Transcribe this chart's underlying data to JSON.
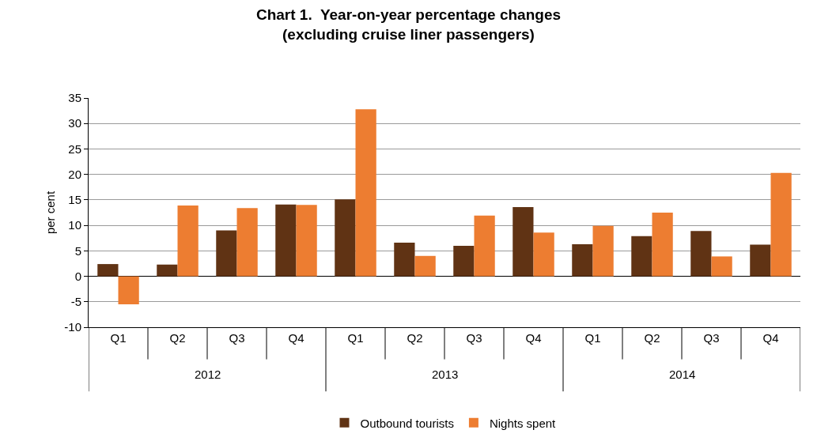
{
  "chart_data": {
    "type": "bar",
    "title": "Chart 1.  Year-on-year percentage changes",
    "subtitle": "(excluding cruise liner passengers)",
    "ylabel": "per cent",
    "categories": [
      "Q1",
      "Q2",
      "Q3",
      "Q4",
      "Q1",
      "Q2",
      "Q3",
      "Q4",
      "Q1",
      "Q2",
      "Q3",
      "Q4"
    ],
    "annotations": [
      "2012",
      "2013",
      "2014"
    ],
    "series": [
      {
        "name": "Outbound tourists",
        "color": "#603314",
        "values": [
          2.4,
          2.3,
          9.0,
          14.1,
          15.1,
          6.6,
          6.0,
          13.6,
          6.3,
          7.9,
          8.9,
          6.2
        ]
      },
      {
        "name": "Nights spent",
        "color": "#ed7d31",
        "values": [
          -5.5,
          13.9,
          13.4,
          14.0,
          32.8,
          4.0,
          11.9,
          8.6,
          9.9,
          12.5,
          3.9,
          20.3
        ]
      }
    ],
    "ylim": [
      -10,
      35
    ],
    "yticks": [
      -10,
      -5,
      0,
      5,
      10,
      15,
      20,
      25,
      30,
      35
    ],
    "grid": "y",
    "legend": "bottom"
  }
}
